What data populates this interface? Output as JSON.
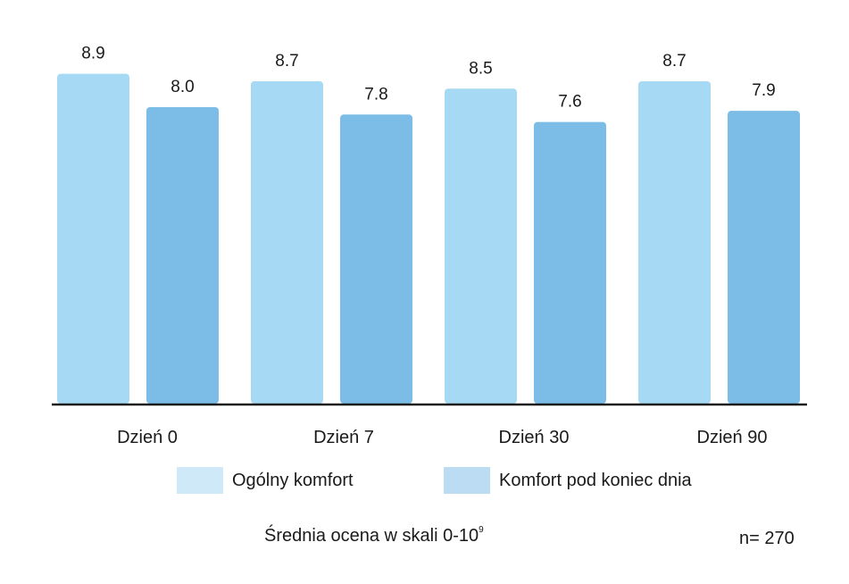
{
  "chart_data": {
    "type": "bar",
    "categories": [
      "Dzień 0",
      "Dzień 7",
      "Dzień 30",
      "Dzień 90"
    ],
    "series": [
      {
        "name": "Ogólny komfort",
        "values": [
          8.9,
          8.7,
          8.5,
          8.7
        ],
        "color": "#a6d9f4"
      },
      {
        "name": "Komfort pod koniec dnia",
        "values": [
          8.0,
          7.8,
          7.6,
          7.9
        ],
        "color": "#7bbde6"
      }
    ],
    "value_labels": [
      [
        "8.9",
        "8.7",
        "8.5",
        "8.7"
      ],
      [
        "8.0",
        "7.8",
        "7.6",
        "7.9"
      ]
    ],
    "ylim": [
      0,
      10
    ],
    "grid": false,
    "legend_position": "bottom"
  },
  "legend": {
    "swatch_colors": [
      "#d0e9f8",
      "#bcdcf3"
    ]
  },
  "footnote": {
    "text": "Średnia ocena w skali 0-10",
    "superscript": "9"
  },
  "sample_size": "n= 270"
}
